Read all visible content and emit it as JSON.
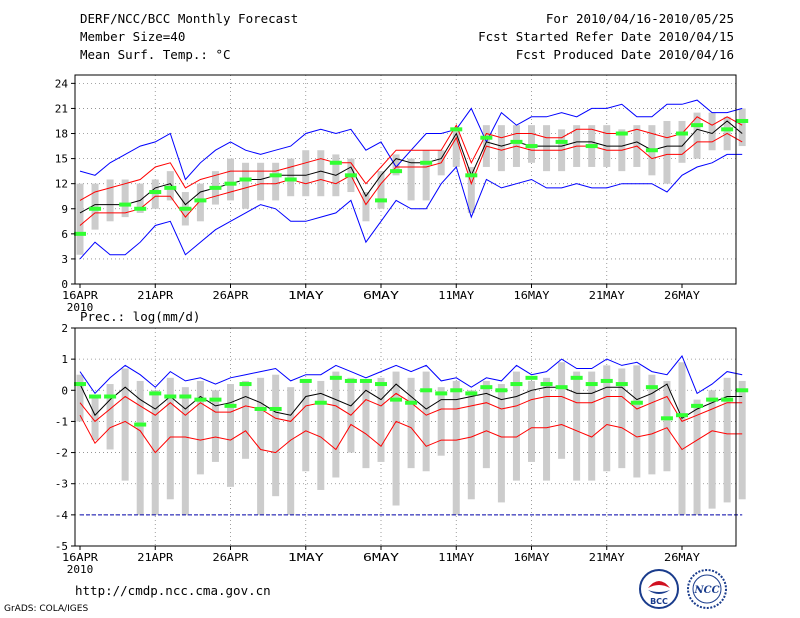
{
  "header": {
    "title": "DERF/NCC/BCC Monthly Forecast",
    "member_size": "Member Size=40",
    "variable": "Mean Surf. Temp.: °C",
    "period": "For 2010/04/16-2010/05/25",
    "refer_date": "Fcst Started Refer Date 2010/04/15",
    "produced_date": "Fcst Produced Date 2010/04/16"
  },
  "footer": {
    "url": "http://cmdp.ncc.cma.gov.cn",
    "credit": "GrADS: COLA/IGES",
    "logo_bcc": "BCC",
    "logo_ncc": "NCC"
  },
  "colors": {
    "max_line": "#0000ff",
    "min_line": "#ff0000",
    "mean_line": "#000000",
    "box": "#cccccc",
    "obs_marker": "#32ff32",
    "grid": "#888888",
    "threshold": "#0000aa"
  },
  "chart_data": [
    {
      "type": "box-line",
      "title": "Mean Surf. Temp.: °C",
      "ylabel": "°C",
      "ylim": [
        0,
        25
      ],
      "yticks": [
        0,
        3,
        6,
        9,
        12,
        15,
        18,
        21,
        24
      ],
      "x_tick_labels": [
        "16APR",
        "21APR",
        "26APR",
        "1MAY",
        "6MAY",
        "11MAY",
        "16MAY",
        "21MAY",
        "26MAY"
      ],
      "x_year_label": "2010",
      "grid": true,
      "series": [
        {
          "name": "max",
          "values": [
            13.5,
            13.0,
            14.5,
            15.5,
            16.5,
            17.0,
            18.0,
            12.5,
            14.5,
            16.0,
            17.0,
            16.0,
            15.5,
            16.0,
            16.5,
            18.0,
            18.5,
            18.0,
            18.5,
            16.0,
            17.0,
            14.0,
            16.0,
            18.0,
            18.0,
            18.5,
            21.0,
            17.0,
            20.5,
            19.0,
            20.0,
            20.0,
            20.5,
            20.0,
            21.0,
            21.0,
            21.5,
            20.0,
            20.0,
            21.5,
            21.5,
            22.0,
            20.5,
            20.5,
            21.0
          ]
        },
        {
          "name": "upper",
          "values": [
            10.0,
            11.0,
            11.5,
            12.0,
            12.5,
            14.0,
            14.5,
            11.5,
            12.5,
            13.0,
            13.5,
            13.5,
            13.5,
            13.5,
            14.0,
            14.5,
            15.0,
            14.5,
            14.5,
            12.0,
            14.0,
            16.0,
            16.0,
            16.0,
            16.0,
            19.0,
            14.5,
            18.0,
            17.5,
            18.0,
            18.0,
            17.5,
            17.5,
            18.5,
            18.5,
            18.0,
            18.0,
            18.5,
            18.0,
            17.5,
            18.0,
            20.0,
            19.0,
            20.0,
            19.0
          ]
        },
        {
          "name": "mean",
          "values": [
            8.5,
            9.5,
            9.5,
            9.5,
            10.0,
            11.5,
            12.0,
            9.5,
            11.0,
            11.5,
            12.0,
            12.5,
            12.5,
            13.0,
            13.0,
            13.0,
            13.5,
            13.0,
            14.0,
            10.5,
            13.0,
            15.0,
            14.5,
            14.5,
            15.0,
            18.0,
            13.0,
            17.0,
            16.5,
            17.0,
            16.5,
            16.5,
            16.5,
            17.0,
            17.0,
            16.5,
            16.5,
            17.0,
            16.0,
            16.5,
            16.5,
            18.5,
            18.0,
            19.5,
            18.0
          ]
        },
        {
          "name": "lower",
          "values": [
            7.0,
            8.5,
            8.5,
            8.5,
            9.0,
            10.5,
            10.5,
            8.0,
            10.0,
            10.5,
            11.0,
            11.5,
            12.0,
            12.0,
            12.5,
            12.0,
            12.5,
            12.0,
            13.0,
            9.5,
            12.0,
            14.0,
            14.0,
            14.0,
            14.5,
            17.5,
            12.0,
            16.5,
            16.0,
            16.5,
            16.0,
            16.0,
            16.0,
            16.5,
            16.5,
            16.0,
            16.0,
            16.5,
            15.0,
            15.5,
            15.5,
            17.0,
            17.0,
            18.0,
            17.0
          ]
        },
        {
          "name": "min",
          "values": [
            3.0,
            5.0,
            3.5,
            3.5,
            5.0,
            7.0,
            7.5,
            3.5,
            5.0,
            6.5,
            7.5,
            8.5,
            9.5,
            9.0,
            7.5,
            7.5,
            8.0,
            8.5,
            10.0,
            5.0,
            7.5,
            10.0,
            9.0,
            9.0,
            12.0,
            14.0,
            8.0,
            12.5,
            11.5,
            12.0,
            12.5,
            11.5,
            11.5,
            12.0,
            11.5,
            11.5,
            12.0,
            12.0,
            12.0,
            11.0,
            13.0,
            14.0,
            14.5,
            15.5,
            15.5
          ]
        },
        {
          "name": "box_low",
          "values": [
            3.5,
            6.5,
            7.5,
            8.0,
            8.5,
            9.0,
            10.0,
            7.0,
            7.5,
            9.5,
            10.0,
            9.0,
            10.0,
            10.0,
            10.5,
            10.5,
            10.5,
            10.5,
            11.0,
            7.5,
            9.0,
            13.0,
            10.0,
            10.0,
            13.0,
            14.0,
            8.5,
            14.0,
            13.5,
            14.0,
            14.5,
            13.5,
            13.5,
            14.0,
            14.0,
            14.0,
            13.5,
            14.0,
            13.0,
            12.0,
            14.5,
            15.0,
            16.0,
            16.0,
            16.5
          ]
        },
        {
          "name": "box_high",
          "values": [
            12.0,
            12.0,
            12.5,
            12.5,
            12.0,
            12.5,
            13.5,
            11.0,
            12.0,
            13.5,
            15.0,
            14.5,
            14.5,
            14.5,
            15.0,
            16.0,
            16.0,
            15.5,
            15.0,
            11.0,
            13.5,
            15.5,
            15.0,
            16.0,
            16.0,
            18.5,
            14.0,
            19.0,
            19.0,
            19.0,
            19.0,
            19.0,
            18.5,
            19.0,
            19.0,
            19.0,
            18.5,
            19.0,
            19.0,
            19.5,
            19.5,
            20.5,
            20.5,
            20.0,
            21.0
          ]
        },
        {
          "name": "observed",
          "values": [
            6.0,
            9.0,
            null,
            9.5,
            9.0,
            11.0,
            11.5,
            9.0,
            10.0,
            11.5,
            12.0,
            12.5,
            null,
            13.0,
            12.5,
            null,
            null,
            14.5,
            13.0,
            null,
            10.0,
            13.5,
            null,
            14.5,
            null,
            18.5,
            13.0,
            17.5,
            null,
            17.0,
            16.5,
            null,
            17.0,
            null,
            16.5,
            null,
            18.0,
            null,
            16.0,
            null,
            18.0,
            19.0,
            null,
            18.5,
            19.5
          ]
        }
      ]
    },
    {
      "type": "box-line",
      "title": "Prec.: log(mm/d)",
      "ylabel": "log(mm/d)",
      "ylim": [
        -5,
        2
      ],
      "yticks": [
        -5,
        -4,
        -3,
        -2,
        -1,
        0,
        1,
        2
      ],
      "x_tick_labels": [
        "16APR",
        "21APR",
        "26APR",
        "1MAY",
        "6MAY",
        "11MAY",
        "16MAY",
        "21MAY",
        "26MAY"
      ],
      "x_year_label": "2010",
      "grid": true,
      "threshold_value": -4,
      "series": [
        {
          "name": "max",
          "values": [
            0.6,
            -0.1,
            0.4,
            0.8,
            0.5,
            0.1,
            0.6,
            0.3,
            0.4,
            0.2,
            0.4,
            0.5,
            0.6,
            0.7,
            0.3,
            0.5,
            0.5,
            0.8,
            0.6,
            0.4,
            0.6,
            0.8,
            0.6,
            0.8,
            0.3,
            0.4,
            0.1,
            0.4,
            0.3,
            0.8,
            0.5,
            0.6,
            1.0,
            0.7,
            0.7,
            1.0,
            0.8,
            0.9,
            0.6,
            0.5,
            1.1,
            -0.1,
            0.2,
            0.6,
            0.5
          ]
        },
        {
          "name": "mean",
          "values": [
            0.2,
            -0.8,
            -0.3,
            0.1,
            -0.3,
            -0.6,
            -0.2,
            -0.6,
            -0.2,
            -0.5,
            -0.4,
            -0.2,
            -0.4,
            -0.7,
            -0.8,
            -0.2,
            -0.1,
            -0.3,
            -0.5,
            0.0,
            -0.3,
            0.2,
            -0.2,
            -0.6,
            -0.3,
            -0.3,
            -0.2,
            -0.1,
            -0.3,
            -0.2,
            0.0,
            0.1,
            0.1,
            -0.1,
            -0.1,
            0.1,
            0.1,
            -0.3,
            -0.1,
            0.2,
            -0.9,
            -0.6,
            -0.4,
            -0.2,
            -0.2
          ]
        },
        {
          "name": "upper",
          "values": [
            -0.4,
            -1.0,
            -0.6,
            -0.2,
            -0.5,
            -0.8,
            -0.4,
            -0.8,
            -0.4,
            -0.7,
            -0.7,
            -0.5,
            -0.6,
            -0.9,
            -1.0,
            -0.5,
            -0.4,
            -0.5,
            -0.8,
            -0.3,
            -0.5,
            -0.1,
            -0.4,
            -0.8,
            -0.6,
            -0.6,
            -0.5,
            -0.4,
            -0.6,
            -0.5,
            -0.3,
            -0.2,
            -0.2,
            -0.4,
            -0.4,
            -0.2,
            -0.2,
            -0.6,
            -0.4,
            -0.2,
            -1.0,
            -0.8,
            -0.6,
            -0.4,
            -0.4
          ]
        },
        {
          "name": "min",
          "values": [
            -0.8,
            -1.7,
            -1.2,
            -1.0,
            -1.3,
            -2.0,
            -1.5,
            -1.5,
            -1.6,
            -1.5,
            -1.6,
            -1.3,
            -1.9,
            -2.0,
            -1.6,
            -1.3,
            -1.5,
            -1.9,
            -1.1,
            -1.4,
            -1.8,
            -1.0,
            -1.2,
            -1.8,
            -1.6,
            -1.6,
            -1.5,
            -1.3,
            -1.5,
            -1.5,
            -1.2,
            -1.2,
            -1.1,
            -1.3,
            -1.5,
            -1.1,
            -1.2,
            -1.5,
            -1.4,
            -1.2,
            -1.9,
            -1.6,
            -1.3,
            -1.4,
            -1.4
          ]
        },
        {
          "name": "box_low",
          "values": [
            -1.0,
            -1.6,
            -1.9,
            -2.9,
            -4.0,
            -4.0,
            -3.5,
            -4.0,
            -2.7,
            -2.3,
            -3.1,
            -2.2,
            -4.0,
            -3.4,
            -4.0,
            -2.6,
            -3.2,
            -2.8,
            -2.0,
            -2.5,
            -2.3,
            -3.7,
            -2.5,
            -2.6,
            -2.1,
            -4.0,
            -3.5,
            -2.5,
            -3.6,
            -2.9,
            -2.3,
            -2.9,
            -2.2,
            -2.9,
            -2.9,
            -2.6,
            -2.5,
            -2.8,
            -2.7,
            -2.6,
            -4.0,
            -4.0,
            -3.8,
            -3.6,
            -3.5
          ]
        },
        {
          "name": "box_high",
          "values": [
            0.5,
            -0.2,
            0.2,
            0.7,
            0.3,
            0.0,
            0.4,
            0.1,
            0.3,
            0.0,
            0.2,
            0.3,
            0.4,
            0.5,
            0.1,
            0.3,
            0.3,
            0.6,
            0.4,
            0.3,
            0.4,
            0.6,
            0.4,
            0.6,
            0.1,
            0.3,
            0.0,
            0.3,
            0.2,
            0.6,
            0.3,
            0.4,
            0.9,
            0.6,
            0.6,
            0.8,
            0.7,
            0.8,
            0.5,
            0.3,
            0.9,
            -0.3,
            0.0,
            0.4,
            0.3
          ]
        },
        {
          "name": "observed",
          "values": [
            0.2,
            -0.2,
            -0.2,
            null,
            -1.1,
            -0.1,
            -0.2,
            -0.2,
            -0.3,
            -0.3,
            -0.5,
            0.2,
            -0.6,
            -0.6,
            null,
            0.3,
            -0.4,
            0.4,
            0.3,
            0.3,
            0.2,
            -0.3,
            -0.4,
            0.0,
            -0.1,
            0.0,
            -0.1,
            0.1,
            0.0,
            0.2,
            0.4,
            0.2,
            0.1,
            0.4,
            0.2,
            0.3,
            0.2,
            -0.4,
            0.1,
            -0.9,
            -0.8,
            -0.5,
            -0.3,
            -0.3,
            0.0
          ]
        }
      ]
    }
  ]
}
